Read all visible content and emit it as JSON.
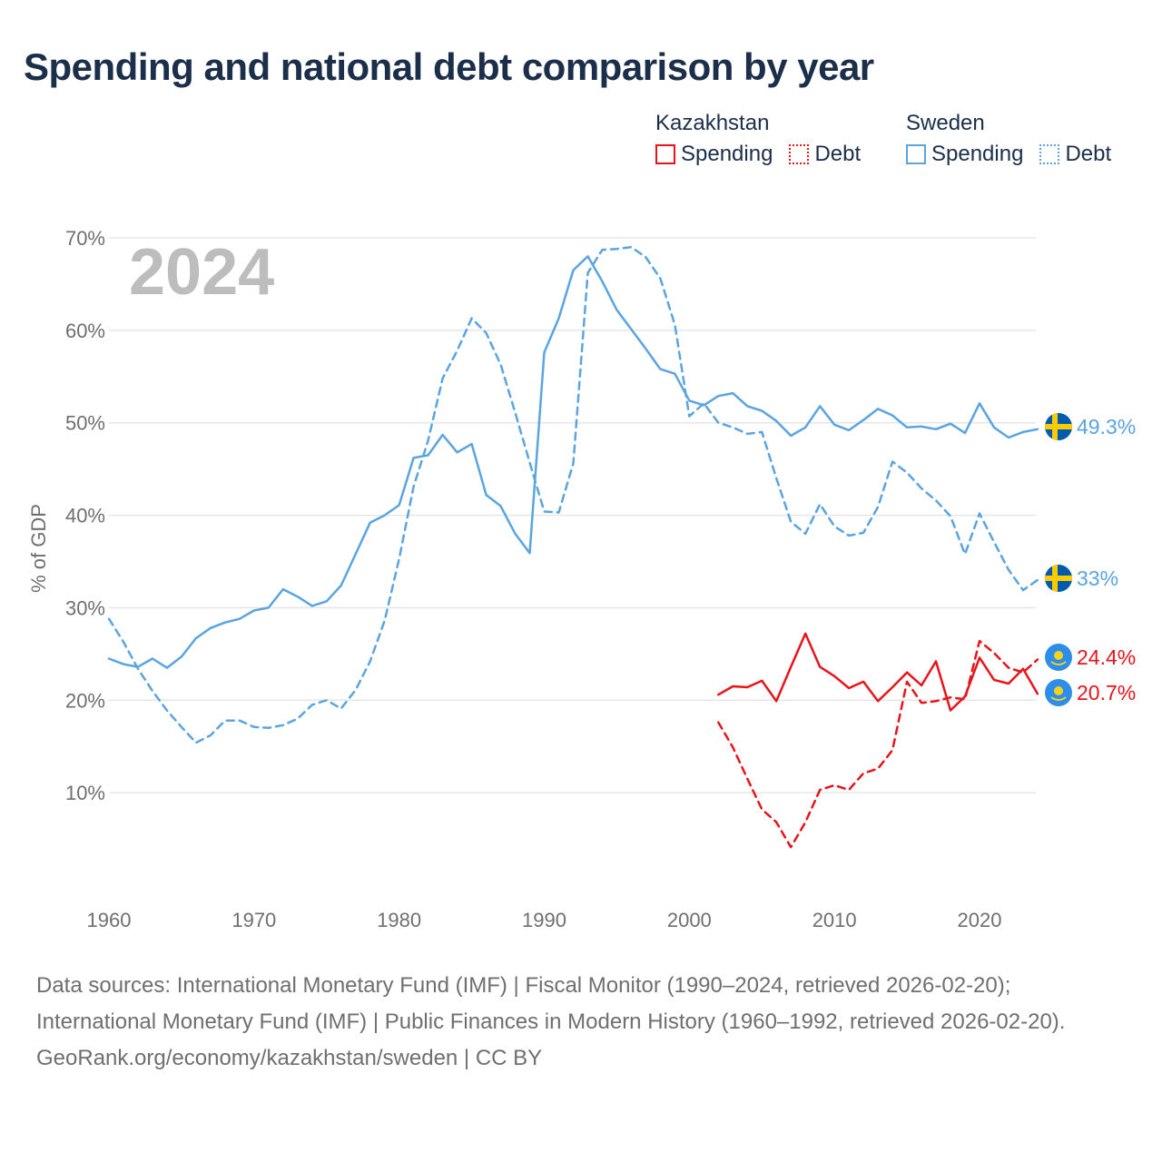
{
  "title": "Spending and national debt comparison by year",
  "legend": {
    "groups": [
      {
        "country": "Kazakhstan",
        "color": "#e8141b",
        "entries": [
          {
            "label": "Spending",
            "style": "solid"
          },
          {
            "label": "Debt",
            "style": "dotted"
          }
        ]
      },
      {
        "country": "Sweden",
        "color": "#5aa4e0",
        "entries": [
          {
            "label": "Spending",
            "style": "solid"
          },
          {
            "label": "Debt",
            "style": "dotted"
          }
        ]
      }
    ]
  },
  "colors": {
    "kazakhstan": "#e8141b",
    "sweden": "#5aa4e0",
    "grid": "#e6e6e6",
    "axis_text": "#6f6f6f",
    "year_label": "#bdbdbd"
  },
  "chart_data": {
    "type": "line",
    "year_label": "2024",
    "ylabel": "% of GDP",
    "xlim": [
      1957,
      2025
    ],
    "ylim": [
      0,
      70
    ],
    "xticks": [
      1960,
      1970,
      1980,
      1990,
      2000,
      2010,
      2020
    ],
    "xtick_labels": [
      "1960",
      "1970",
      "1980",
      "1990",
      "2000",
      "2010",
      "2020"
    ],
    "yticks": [
      10,
      20,
      30,
      40,
      50,
      60,
      70
    ],
    "ytick_labels": [
      "10%",
      "20%",
      "30%",
      "40%",
      "50%",
      "60%",
      "70%"
    ],
    "series": [
      {
        "name": "Sweden Spending",
        "country": "Sweden",
        "dashed": false,
        "color": "#5aa4e0",
        "end_label": "49.3%",
        "end_value": 49.3,
        "x": [
          1960,
          1961,
          1962,
          1963,
          1964,
          1965,
          1966,
          1967,
          1968,
          1969,
          1970,
          1971,
          1972,
          1973,
          1974,
          1975,
          1976,
          1977,
          1978,
          1979,
          1980,
          1981,
          1982,
          1983,
          1984,
          1985,
          1986,
          1987,
          1988,
          1989,
          1990,
          1991,
          1992,
          1993,
          1994,
          1995,
          1996,
          1997,
          1998,
          1999,
          2000,
          2001,
          2002,
          2003,
          2004,
          2005,
          2006,
          2007,
          2008,
          2009,
          2010,
          2011,
          2012,
          2013,
          2014,
          2015,
          2016,
          2017,
          2018,
          2019,
          2020,
          2021,
          2022,
          2023,
          2024
        ],
        "y": [
          24.5,
          23.9,
          23.6,
          24.5,
          23.5,
          24.7,
          26.7,
          27.8,
          28.4,
          28.8,
          29.7,
          30.0,
          32.0,
          31.2,
          30.2,
          30.7,
          32.4,
          35.8,
          39.2,
          40.0,
          41.1,
          46.2,
          46.5,
          48.7,
          46.8,
          47.7,
          42.2,
          41.0,
          38.0,
          35.9,
          57.6,
          61.3,
          66.5,
          68.0,
          65.3,
          62.2,
          60.1,
          58.0,
          55.8,
          55.3,
          52.4,
          51.9,
          52.9,
          53.2,
          51.8,
          51.3,
          50.2,
          48.6,
          49.5,
          51.8,
          49.8,
          49.2,
          50.3,
          51.5,
          50.8,
          49.5,
          49.6,
          49.3,
          49.9,
          48.9,
          52.1,
          49.5,
          48.4,
          49.0,
          49.3
        ]
      },
      {
        "name": "Sweden Debt",
        "country": "Sweden",
        "dashed": true,
        "color": "#5aa4e0",
        "end_label": "33%",
        "end_value": 33.0,
        "x": [
          1960,
          1961,
          1962,
          1963,
          1964,
          1965,
          1966,
          1967,
          1968,
          1969,
          1970,
          1971,
          1972,
          1973,
          1974,
          1975,
          1976,
          1977,
          1978,
          1979,
          1980,
          1981,
          1982,
          1983,
          1984,
          1985,
          1986,
          1987,
          1988,
          1989,
          1990,
          1991,
          1992,
          1993,
          1994,
          1995,
          1996,
          1997,
          1998,
          1999,
          2000,
          2001,
          2002,
          2003,
          2004,
          2005,
          2006,
          2007,
          2008,
          2009,
          2010,
          2011,
          2012,
          2013,
          2014,
          2015,
          2016,
          2017,
          2018,
          2019,
          2020,
          2021,
          2022,
          2023,
          2024
        ],
        "y": [
          28.8,
          26.3,
          23.4,
          21.0,
          18.9,
          17.1,
          15.4,
          16.2,
          17.8,
          17.8,
          17.1,
          17.0,
          17.3,
          18.0,
          19.5,
          20.0,
          19.1,
          21.1,
          24.2,
          28.6,
          35.3,
          43.1,
          48.1,
          54.8,
          57.8,
          61.3,
          59.7,
          56.3,
          51.1,
          45.7,
          40.4,
          40.3,
          45.6,
          66.2,
          68.7,
          68.8,
          69.0,
          67.9,
          65.6,
          60.6,
          50.7,
          52.1,
          50.0,
          49.5,
          48.8,
          49.0,
          44.0,
          39.3,
          38.0,
          41.2,
          38.8,
          37.8,
          38.1,
          40.9,
          45.8,
          44.6,
          42.9,
          41.6,
          39.9,
          35.8,
          40.2,
          37.1,
          34.1,
          31.9,
          33.0
        ]
      },
      {
        "name": "Kazakhstan Spending",
        "country": "Kazakhstan",
        "dashed": false,
        "color": "#e8141b",
        "end_label": "20.7%",
        "end_value": 20.7,
        "x": [
          2002,
          2003,
          2004,
          2005,
          2006,
          2007,
          2008,
          2009,
          2010,
          2011,
          2012,
          2013,
          2014,
          2015,
          2016,
          2017,
          2018,
          2019,
          2020,
          2021,
          2022,
          2023,
          2024
        ],
        "y": [
          20.6,
          21.5,
          21.4,
          22.1,
          19.9,
          23.6,
          27.2,
          23.6,
          22.6,
          21.3,
          22.0,
          19.9,
          21.4,
          23.0,
          21.6,
          24.2,
          18.9,
          20.4,
          24.6,
          22.2,
          21.8,
          23.4,
          20.7
        ]
      },
      {
        "name": "Kazakhstan Debt",
        "country": "Kazakhstan",
        "dashed": true,
        "color": "#e8141b",
        "end_label": "24.4%",
        "end_value": 24.4,
        "x": [
          2002,
          2003,
          2004,
          2005,
          2006,
          2007,
          2008,
          2009,
          2010,
          2011,
          2012,
          2013,
          2014,
          2015,
          2016,
          2017,
          2018,
          2019,
          2020,
          2021,
          2022,
          2023,
          2024
        ],
        "y": [
          17.6,
          14.9,
          11.5,
          8.2,
          6.8,
          4.1,
          6.8,
          10.3,
          10.8,
          10.3,
          12.1,
          12.6,
          14.6,
          22.0,
          19.7,
          19.9,
          20.3,
          20.1,
          26.4,
          25.1,
          23.5,
          23.0,
          24.4
        ]
      }
    ]
  },
  "footer": {
    "sources": "Data sources: International Monetary Fund (IMF) | Fiscal Monitor (1990–2024, retrieved 2026-02-20); International Monetary Fund (IMF) | Public Finances in Modern History (1960–1992, retrieved 2026-02-20).",
    "credit": "GeoRank.org/economy/kazakhstan/sweden | CC BY"
  }
}
